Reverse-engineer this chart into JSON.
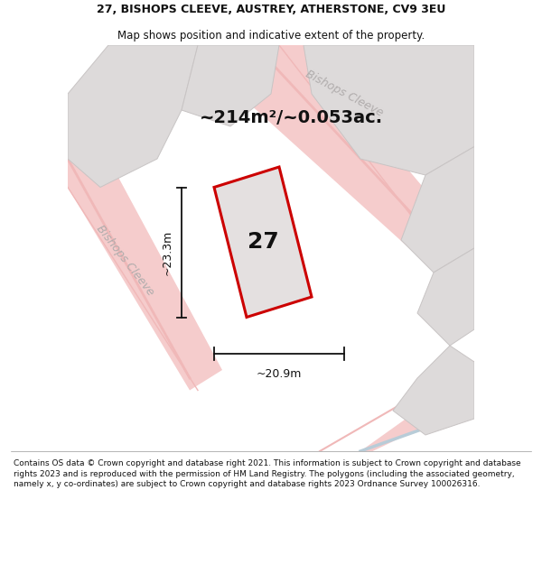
{
  "title_line1": "27, BISHOPS CLEEVE, AUSTREY, ATHERSTONE, CV9 3EU",
  "title_line2": "Map shows position and indicative extent of the property.",
  "area_label": "~214m²/~0.053ac.",
  "property_number": "27",
  "width_label": "~20.9m",
  "height_label": "~23.3m",
  "footer_text": "Contains OS data © Crown copyright and database right 2021. This information is subject to Crown copyright and database rights 2023 and is reproduced with the permission of HM Land Registry. The polygons (including the associated geometry, namely x, y co-ordinates) are subject to Crown copyright and database rights 2023 Ordnance Survey 100026316.",
  "map_bg": "#eeecec",
  "road_pink": "#f0b8b8",
  "road_pink2": "#f5cccc",
  "block_fill": "#dddada",
  "block_edge": "#c8c4c4",
  "property_fill": "#e4e0e0",
  "property_edge": "#cc0000",
  "dim_color": "#111111",
  "street_color": "#b0acac",
  "title_color": "#111111",
  "footer_color": "#111111",
  "white": "#ffffff",
  "blue_road": "#b8ccd8",
  "title_fs": 9.0,
  "subtitle_fs": 8.5,
  "area_fs": 14,
  "number_fs": 18,
  "dim_fs": 9,
  "street_fs": 9,
  "footer_fs": 6.5
}
